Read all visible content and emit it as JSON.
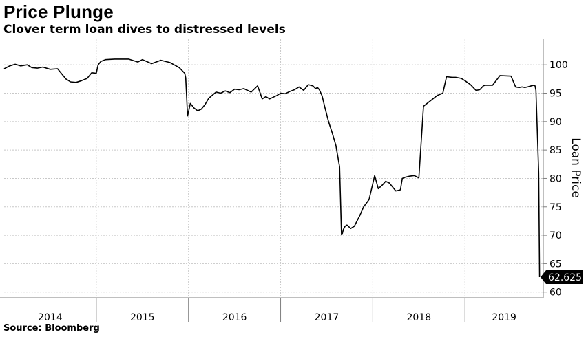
{
  "header": {
    "title": "Price Plunge",
    "subtitle": "Clover term loan dives to distressed levels"
  },
  "footer": {
    "source": "Source: Bloomberg"
  },
  "colors": {
    "line": "#000000",
    "grid": "#c8c8c8",
    "axis": "#7f7f7f",
    "last_value_bg": "#000000"
  },
  "chart_data": {
    "type": "line",
    "title": "Price Plunge",
    "subtitle": "Clover term loan dives to distressed levels",
    "ylabel": "Loan Price",
    "xlabel": "",
    "ylim": [
      59,
      104.5
    ],
    "xlim": [
      2014.0,
      2019.85
    ],
    "yticks": [
      60,
      65,
      70,
      75,
      80,
      85,
      90,
      95,
      100
    ],
    "year_labels": [
      "2014",
      "2015",
      "2016",
      "2017",
      "2018",
      "2019"
    ],
    "year_boundaries": [
      2015,
      2016,
      2017,
      2018,
      2019
    ],
    "y_axis_position": "right",
    "grid": true,
    "last_value": 62.625,
    "last_value_label": "62.625",
    "series": [
      {
        "x": [
          2014.0,
          2014.06,
          2014.12,
          2014.18,
          2014.25,
          2014.3,
          2014.36,
          2014.42,
          2014.5,
          2014.58,
          2014.62,
          2014.67,
          2014.72,
          2014.78,
          2014.84,
          2014.9,
          2014.95,
          2015.0,
          2015.02,
          2015.05,
          2015.1,
          2015.2,
          2015.35,
          2015.45,
          2015.5,
          2015.6,
          2015.7,
          2015.8,
          2015.9,
          2015.96,
          2015.97,
          2015.99,
          2016.02,
          2016.06,
          2016.1,
          2016.14,
          2016.18,
          2016.22,
          2016.3,
          2016.35,
          2016.4,
          2016.45,
          2016.5,
          2016.55,
          2016.6,
          2016.68,
          2016.75,
          2016.8,
          2016.84,
          2016.88,
          2016.92,
          2016.96,
          2017.0,
          2017.05,
          2017.1,
          2017.15,
          2017.2,
          2017.25,
          2017.3,
          2017.35,
          2017.38,
          2017.4,
          2017.42,
          2017.45,
          2017.48,
          2017.52,
          2017.56,
          2017.6,
          2017.64,
          2017.66,
          2017.67,
          2017.68,
          2017.7,
          2017.72,
          2017.76,
          2017.8,
          2017.86,
          2017.9,
          2017.96,
          2018.02,
          2018.06,
          2018.1,
          2018.14,
          2018.18,
          2018.25,
          2018.3,
          2018.32,
          2018.35,
          2018.4,
          2018.45,
          2018.5,
          2018.55,
          2018.62,
          2018.7,
          2018.76,
          2018.8,
          2018.86,
          2018.9,
          2018.96,
          2019.0,
          2019.06,
          2019.12,
          2019.16,
          2019.2,
          2019.22,
          2019.3,
          2019.38,
          2019.5,
          2019.55,
          2019.585,
          2019.59,
          2019.62,
          2019.65,
          2019.68,
          2019.72,
          2019.75,
          2019.76,
          2019.77,
          2019.8,
          2019.81
        ],
        "values": [
          99.3,
          99.8,
          100.1,
          99.8,
          100.0,
          99.5,
          99.4,
          99.6,
          99.2,
          99.3,
          98.5,
          97.5,
          97.0,
          96.9,
          97.2,
          97.6,
          98.6,
          98.5,
          100.0,
          100.6,
          100.9,
          101.0,
          101.0,
          100.5,
          100.9,
          100.2,
          100.8,
          100.4,
          99.5,
          98.5,
          97.7,
          91.0,
          93.2,
          92.4,
          91.9,
          92.2,
          93.0,
          94.1,
          95.2,
          95.0,
          95.4,
          95.1,
          95.7,
          95.6,
          95.8,
          95.2,
          96.3,
          94.0,
          94.4,
          94.0,
          94.3,
          94.6,
          95.0,
          94.9,
          95.3,
          95.6,
          96.1,
          95.5,
          96.5,
          96.3,
          95.8,
          96.0,
          95.6,
          94.5,
          92.5,
          90.0,
          88.0,
          85.8,
          82.0,
          70.2,
          70.3,
          71.0,
          71.6,
          71.8,
          71.2,
          71.6,
          73.5,
          75.0,
          76.3,
          80.5,
          78.2,
          78.8,
          79.5,
          79.2,
          77.8,
          78.0,
          80.0,
          80.2,
          80.4,
          80.5,
          80.1,
          92.7,
          93.6,
          94.6,
          95.0,
          97.9,
          97.8,
          97.8,
          97.6,
          97.2,
          96.5,
          95.5,
          95.6,
          96.3,
          96.4,
          96.4,
          98.1,
          98.0,
          96.1,
          96.0,
          96.0,
          96.1,
          96.0,
          96.1,
          96.3,
          96.4,
          96.3,
          95.5,
          81.0,
          62.625
        ]
      }
    ]
  }
}
